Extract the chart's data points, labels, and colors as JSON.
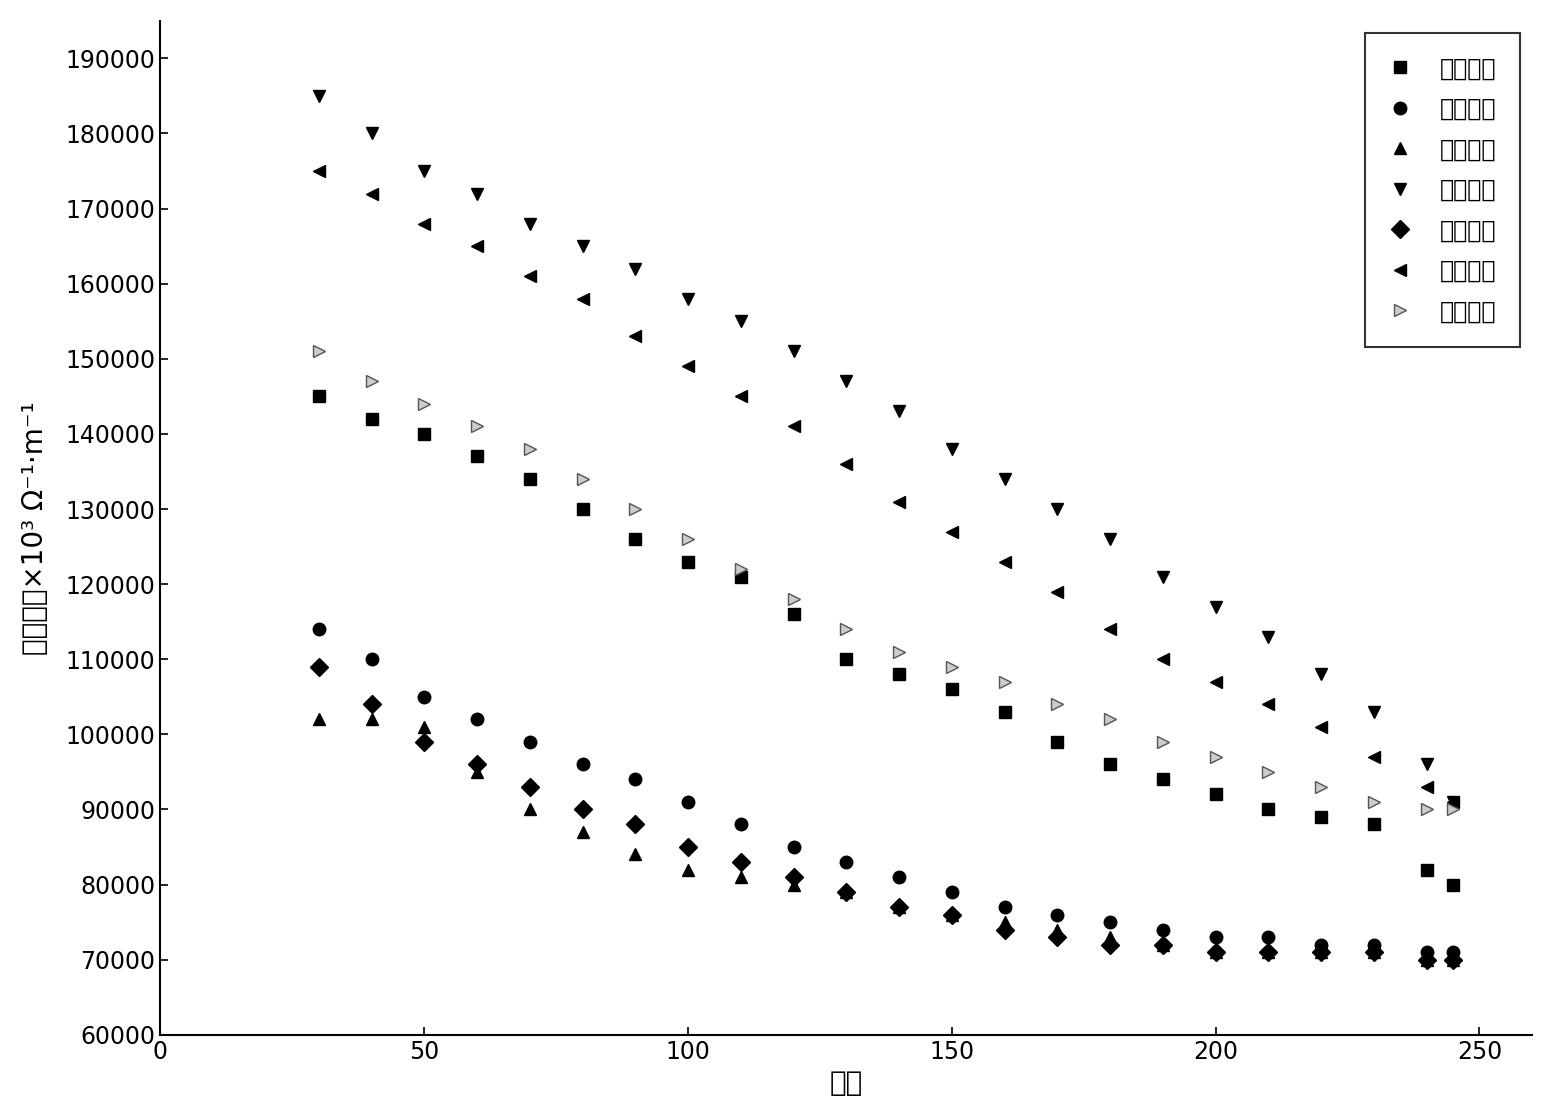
{
  "xlabel": "温度",
  "ylabel": "电导率， ×10³ Ω⁻¹·m⁻¹",
  "xlim": [
    0,
    260
  ],
  "ylim": [
    60000,
    195000
  ],
  "yticks": [
    60000,
    70000,
    80000,
    90000,
    100000,
    110000,
    120000,
    130000,
    140000,
    150000,
    160000,
    170000,
    180000,
    190000
  ],
  "xticks": [
    0,
    50,
    100,
    150,
    200,
    250
  ],
  "series": [
    {
      "name": "实施例一",
      "marker": "s",
      "color": "#000000",
      "mfc": "#000000",
      "x": [
        30,
        40,
        50,
        60,
        70,
        80,
        90,
        100,
        110,
        120,
        130,
        140,
        150,
        160,
        170,
        180,
        190,
        200,
        210,
        220,
        230,
        240,
        245
      ],
      "y": [
        145000,
        142000,
        140000,
        137000,
        134000,
        130000,
        126000,
        123000,
        121000,
        116000,
        110000,
        108000,
        106000,
        103000,
        99000,
        96000,
        94000,
        92000,
        90000,
        89000,
        88000,
        82000,
        80000
      ]
    },
    {
      "name": "实施例二",
      "marker": "o",
      "color": "#000000",
      "mfc": "#000000",
      "x": [
        30,
        40,
        50,
        60,
        70,
        80,
        90,
        100,
        110,
        120,
        130,
        140,
        150,
        160,
        170,
        180,
        190,
        200,
        210,
        220,
        230,
        240,
        245
      ],
      "y": [
        114000,
        110000,
        105000,
        102000,
        99000,
        96000,
        94000,
        91000,
        88000,
        85000,
        83000,
        81000,
        79000,
        77000,
        76000,
        75000,
        74000,
        73000,
        73000,
        72000,
        72000,
        71000,
        71000
      ]
    },
    {
      "name": "实施例三",
      "marker": "^",
      "color": "#000000",
      "mfc": "#000000",
      "x": [
        30,
        40,
        50,
        60,
        70,
        80,
        90,
        100,
        110,
        120,
        130,
        140,
        150,
        160,
        170,
        180,
        190,
        200,
        210,
        220,
        230,
        240,
        245
      ],
      "y": [
        102000,
        102000,
        101000,
        95000,
        90000,
        87000,
        84000,
        82000,
        81000,
        80000,
        79000,
        77000,
        76000,
        75000,
        74000,
        73000,
        72000,
        71000,
        71000,
        71000,
        71000,
        70000,
        70000
      ]
    },
    {
      "name": "实施例四",
      "marker": "v",
      "color": "#000000",
      "mfc": "#000000",
      "x": [
        30,
        40,
        50,
        60,
        70,
        80,
        90,
        100,
        110,
        120,
        130,
        140,
        150,
        160,
        170,
        180,
        190,
        200,
        210,
        220,
        230,
        240,
        245
      ],
      "y": [
        185000,
        180000,
        175000,
        172000,
        168000,
        165000,
        162000,
        158000,
        155000,
        151000,
        147000,
        143000,
        138000,
        134000,
        130000,
        126000,
        121000,
        117000,
        113000,
        108000,
        103000,
        96000,
        91000
      ]
    },
    {
      "name": "实施例五",
      "marker": "D",
      "color": "#000000",
      "mfc": "#000000",
      "x": [
        30,
        40,
        50,
        60,
        70,
        80,
        90,
        100,
        110,
        120,
        130,
        140,
        150,
        160,
        170,
        180,
        190,
        200,
        210,
        220,
        230,
        240,
        245
      ],
      "y": [
        109000,
        104000,
        99000,
        96000,
        93000,
        90000,
        88000,
        85000,
        83000,
        81000,
        79000,
        77000,
        76000,
        74000,
        73000,
        72000,
        72000,
        71000,
        71000,
        71000,
        71000,
        70000,
        70000
      ]
    },
    {
      "name": "对比例一",
      "marker": "<",
      "color": "#000000",
      "mfc": "#000000",
      "x": [
        30,
        40,
        50,
        60,
        70,
        80,
        90,
        100,
        110,
        120,
        130,
        140,
        150,
        160,
        170,
        180,
        190,
        200,
        210,
        220,
        230,
        240,
        245
      ],
      "y": [
        175000,
        172000,
        168000,
        165000,
        161000,
        158000,
        153000,
        149000,
        145000,
        141000,
        136000,
        131000,
        127000,
        123000,
        119000,
        114000,
        110000,
        107000,
        104000,
        101000,
        97000,
        93000,
        91000
      ]
    },
    {
      "name": "对比例二",
      "marker": "4",
      "color": "#888888",
      "mfc": "#cccccc",
      "x": [
        30,
        40,
        50,
        60,
        70,
        80,
        90,
        100,
        110,
        120,
        130,
        140,
        150,
        160,
        170,
        180,
        190,
        200,
        210,
        220,
        230,
        240,
        245
      ],
      "y": [
        151000,
        147000,
        144000,
        141000,
        138000,
        134000,
        130000,
        126000,
        122000,
        118000,
        114000,
        111000,
        109000,
        107000,
        104000,
        102000,
        99000,
        97000,
        95000,
        93000,
        91000,
        90000,
        90000
      ]
    }
  ],
  "legend_loc": "upper right",
  "background_color": "#ffffff",
  "markersize": 9,
  "fontsize_labels": 20,
  "fontsize_ticks": 17,
  "fontsize_legend": 17
}
